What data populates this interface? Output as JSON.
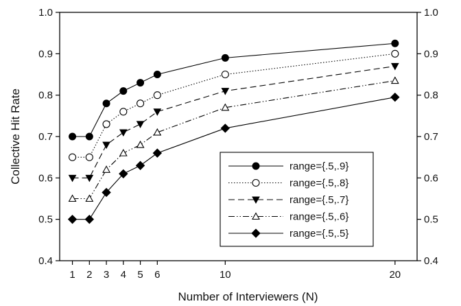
{
  "chart_data": {
    "type": "line",
    "xlabel": "Number of Interviewers (N)",
    "ylabel": "Collective Hit Rate",
    "x": [
      1,
      2,
      3,
      4,
      5,
      6,
      10,
      20
    ],
    "x_tick_labels": [
      "1",
      "2",
      "3",
      "4",
      "5",
      "6",
      "10",
      "20"
    ],
    "ylim": [
      0.4,
      1.0
    ],
    "y_tick_labels": [
      "0.4",
      "0.5",
      "0.6",
      "0.7",
      "0.8",
      "0.9",
      "1.0"
    ],
    "right_axis_tick_labels": [
      "0.4",
      "0.5",
      "0.6",
      "0.7",
      "0.8",
      "0.9",
      "1.0"
    ],
    "grid": false,
    "legend_position": "bottom-right",
    "series": [
      {
        "name": "range={.5,.9}",
        "values": [
          0.7,
          0.7,
          0.78,
          0.81,
          0.83,
          0.85,
          0.89,
          0.925
        ],
        "marker": "filled-circle",
        "line_style": "solid"
      },
      {
        "name": "range={.5,.8}",
        "values": [
          0.65,
          0.65,
          0.73,
          0.76,
          0.78,
          0.8,
          0.85,
          0.9
        ],
        "marker": "open-circle",
        "line_style": "dotted"
      },
      {
        "name": "range={.5,.7}",
        "values": [
          0.6,
          0.6,
          0.68,
          0.71,
          0.73,
          0.76,
          0.81,
          0.87
        ],
        "marker": "filled-triangle-down",
        "line_style": "dashed"
      },
      {
        "name": "range={.5,.6}",
        "values": [
          0.55,
          0.55,
          0.62,
          0.66,
          0.68,
          0.71,
          0.77,
          0.835
        ],
        "marker": "open-triangle-up",
        "line_style": "dash-dot-dot"
      },
      {
        "name": "range={.5,.5}",
        "values": [
          0.5,
          0.5,
          0.565,
          0.61,
          0.63,
          0.66,
          0.72,
          0.795
        ],
        "marker": "filled-diamond",
        "line_style": "solid"
      }
    ]
  }
}
